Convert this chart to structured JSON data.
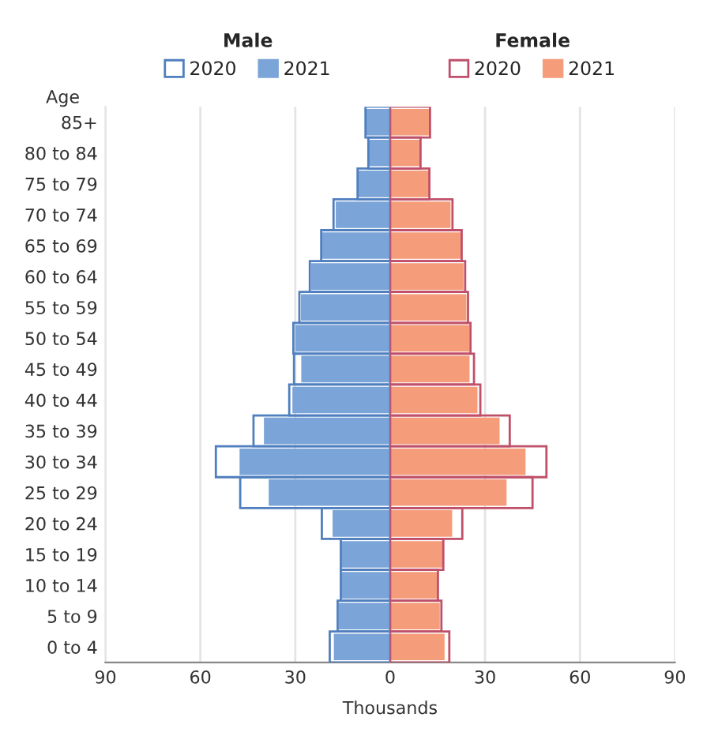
{
  "chart_data": [
    {
      "type": "bar",
      "orientation": "horizontal",
      "legend_title": "Male",
      "ylabel": "Age",
      "xlabel": "Thousands",
      "legend": "top",
      "grid": "x",
      "tick_labels": "xy",
      "categories": [
        "85+",
        "80 to 84",
        "75 to 79",
        "70 to 74",
        "65 to 69",
        "60 to 64",
        "55 to 59",
        "50 to 54",
        "45 to 49",
        "40 to 44",
        "35 to 39",
        "30 to 34",
        "25 to 29",
        "20 to 24",
        "15 to 19",
        "10 to 14",
        "5 to 9",
        "0 to 4"
      ],
      "series": [
        {
          "name": "2020",
          "color": "#4f7fbf",
          "values": [
            7.8,
            6.9,
            10.3,
            17.9,
            21.8,
            25.4,
            28.7,
            30.6,
            30.4,
            31.9,
            43.2,
            55.1,
            47.4,
            21.6,
            15.6,
            15.6,
            16.6,
            19.1
          ]
        },
        {
          "name": "2021",
          "color": "#7ba4d8",
          "values": [
            7.8,
            6.9,
            10.3,
            17.2,
            21.6,
            25.0,
            28.2,
            30.0,
            28.1,
            30.9,
            39.9,
            47.6,
            38.4,
            18.2,
            15.6,
            15.6,
            16.3,
            17.8
          ]
        }
      ],
      "xlim": [
        90,
        0
      ],
      "xticks": [
        90,
        60,
        30,
        0
      ]
    },
    {
      "type": "bar",
      "orientation": "horizontal",
      "legend_title": "Female",
      "legend": "top",
      "grid": "x",
      "tick_labels": "x",
      "series": [
        {
          "name": "2020",
          "color": "#c0506a",
          "values": [
            12.6,
            9.6,
            12.4,
            19.7,
            22.6,
            23.7,
            24.6,
            25.4,
            26.5,
            28.5,
            37.8,
            49.4,
            45.0,
            22.8,
            16.8,
            15.1,
            16.2,
            18.7
          ]
        },
        {
          "name": "2021",
          "color": "#f59d7a",
          "values": [
            12.6,
            9.6,
            12.4,
            19.1,
            22.4,
            23.2,
            24.1,
            25.1,
            25.1,
            27.6,
            34.6,
            42.8,
            36.8,
            19.6,
            16.8,
            14.9,
            15.7,
            17.2
          ]
        }
      ],
      "xlim": [
        0,
        90
      ],
      "xticks": [
        30,
        60,
        90
      ]
    }
  ]
}
